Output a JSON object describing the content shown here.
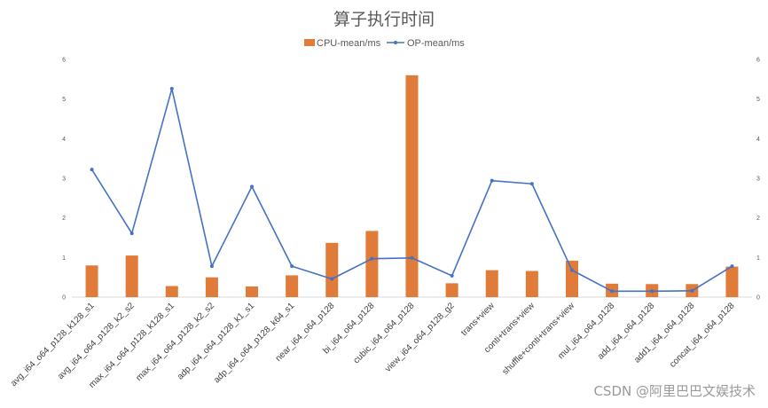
{
  "chart_data": {
    "type": "bar",
    "title": "算子执行时间",
    "categories": [
      "avg_i64_o64_p128_k128_s1",
      "avg_i64_o64_p128_k2_s2",
      "max_i64_o64_p128_k128_s1",
      "max_i64_o64_p128_k2_s2",
      "adp_i64_o64_p128_k1_s1",
      "adp_i64_o64_p128_k64_s1",
      "near_i64_o64_p128",
      "bi_i64_o64_p128",
      "cubic_i64_o64_p128",
      "view_i64_o64_p128_g2",
      "trans+view",
      "conti+trans+view",
      "shuffle+conti+trans+view",
      "mul_i64_o64_p128",
      "add_i64_o64_p128",
      "add1_i64_o64_p128",
      "concat_i64_o64_p128"
    ],
    "series": [
      {
        "name": "CPU-mean/ms",
        "type": "bar",
        "axis": "left",
        "color": "#e07b39",
        "values": [
          0.8,
          1.05,
          0.28,
          0.5,
          0.27,
          0.55,
          1.37,
          1.67,
          5.6,
          0.35,
          0.68,
          0.66,
          0.92,
          0.34,
          0.33,
          0.33,
          0.77
        ]
      },
      {
        "name": "OP-mean/ms",
        "type": "line",
        "axis": "right",
        "color": "#4472c4",
        "values": [
          3.22,
          1.61,
          5.26,
          0.78,
          2.79,
          0.78,
          0.46,
          0.97,
          0.99,
          0.54,
          2.94,
          2.86,
          0.68,
          0.15,
          0.15,
          0.16,
          0.78
        ]
      }
    ],
    "y_left": {
      "min": 0,
      "max": 6,
      "ticks": [
        "0",
        "1",
        "2",
        "3",
        "4",
        "5",
        "6"
      ]
    },
    "y_right": {
      "min": 0,
      "max": 6,
      "ticks": [
        "0",
        "1",
        "2",
        "3",
        "4",
        "5",
        "6"
      ]
    },
    "grid": false,
    "legend_position": "top-center"
  },
  "watermark": "CSDN @阿里巴巴文娱技术"
}
